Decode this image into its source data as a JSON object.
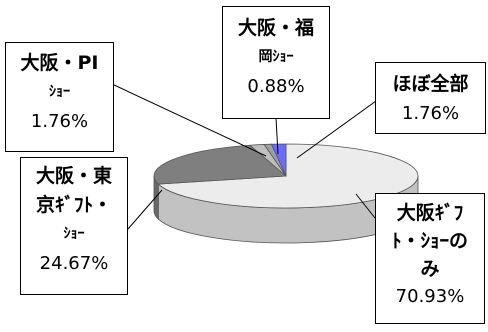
{
  "chart_data": {
    "type": "pie",
    "slices": [
      {
        "label": "大阪ｷﾞﾌﾄ・ｼｮｰのみ",
        "value": 70.93,
        "color": "#ececec"
      },
      {
        "label": "大阪・東京ｷﾞﾌﾄ・ｼｮｰ",
        "value": 24.67,
        "color": "#7f7f7f"
      },
      {
        "label": "大阪・PIｼｮｰ",
        "value": 1.76,
        "color": "#bfbfbf"
      },
      {
        "label": "大阪・福岡ｼｮｰ",
        "value": 0.88,
        "color": "#9f9f9f"
      },
      {
        "label": "ほぼ全部",
        "value": 1.76,
        "color": "#6b6bff"
      }
    ],
    "style": "3d-exploded",
    "legend": "none"
  },
  "labels": {
    "only_osaka": {
      "line1": "大阪ｷﾞﾌ",
      "line2": "ﾄ・ｼｮｰの",
      "line3": "み",
      "pct": "70.93%"
    },
    "osaka_tokyo": {
      "line1": "大阪・東",
      "line2": "京ｷﾞﾌﾄ・",
      "line3": "ｼｮｰ",
      "pct": "24.67%"
    },
    "osaka_pi": {
      "line1": "大阪・PI",
      "line2": "ｼｮｰ",
      "pct": "1.76%"
    },
    "osaka_fukuoka": {
      "line1": "大阪・福",
      "line2": "岡ｼｮｰ",
      "pct": "0.88%"
    },
    "almost_all": {
      "line1": "ほぼ全部",
      "pct": "1.76%"
    }
  }
}
